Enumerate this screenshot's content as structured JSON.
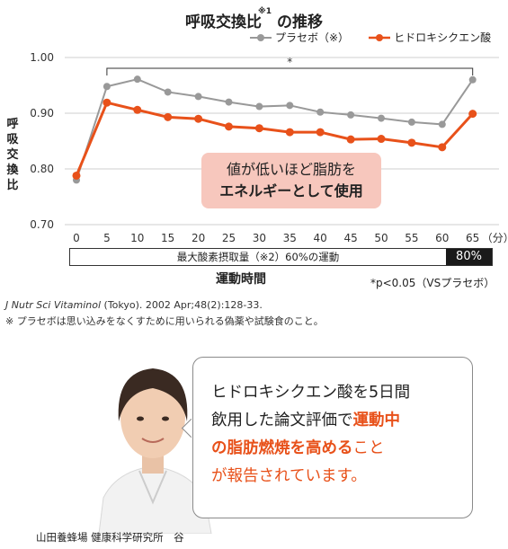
{
  "chart_data": {
    "type": "line",
    "title": "呼吸交換比",
    "title_note": "※1",
    "title_suffix": "の推移",
    "ylabel": "呼吸交換比",
    "xlabel": "運動時間",
    "x_unit": "（分）",
    "ylim": [
      0.7,
      1.0
    ],
    "yticks": [
      "1.00",
      "0.90",
      "0.80",
      "0.70"
    ],
    "x": [
      0,
      5,
      10,
      15,
      20,
      25,
      30,
      35,
      40,
      45,
      50,
      55,
      60,
      65
    ],
    "series": [
      {
        "name": "プラセボ（※）",
        "color": "#999999",
        "values": [
          0.78,
          0.948,
          0.961,
          0.938,
          0.93,
          0.92,
          0.912,
          0.914,
          0.902,
          0.897,
          0.891,
          0.884,
          0.88,
          0.96
        ]
      },
      {
        "name": "ヒドロキシクエン酸",
        "color": "#e8511a",
        "values": [
          0.788,
          0.919,
          0.906,
          0.893,
          0.89,
          0.876,
          0.873,
          0.866,
          0.866,
          0.853,
          0.854,
          0.847,
          0.839,
          0.899
        ]
      }
    ],
    "significance_mark": "*",
    "grid": "horizontal",
    "legend": "top-right"
  },
  "intensity": {
    "low_label": "最大酸素摂取量（※2）60%の運動",
    "high_label": "80%"
  },
  "significance_note": "*p<0.05（VSプラセボ）",
  "callout": {
    "line1": "値が低いほど脂肪を",
    "line2": "エネルギーとして使用"
  },
  "source": {
    "journal": "J Nutr Sci Vitaminol",
    "rest": " (Tokyo). 2002 Apr;48(2):128-33."
  },
  "note": "※ プラセボは思い込みをなくすために用いられる偽薬や試験食のこと。",
  "bubble": {
    "line1": "ヒドロキシクエン酸を5日間",
    "line2a": "飲用した論文評価で",
    "line2b": "運動中",
    "line3a": "の脂肪燃焼を高める",
    "line3b": "こと",
    "line4": "が報告されています。"
  },
  "caption": "山田養蜂場 健康科学研究所　谷",
  "colors": {
    "accent": "#e8511a",
    "placebo": "#999999",
    "callout_bg": "#f7c7bd"
  }
}
